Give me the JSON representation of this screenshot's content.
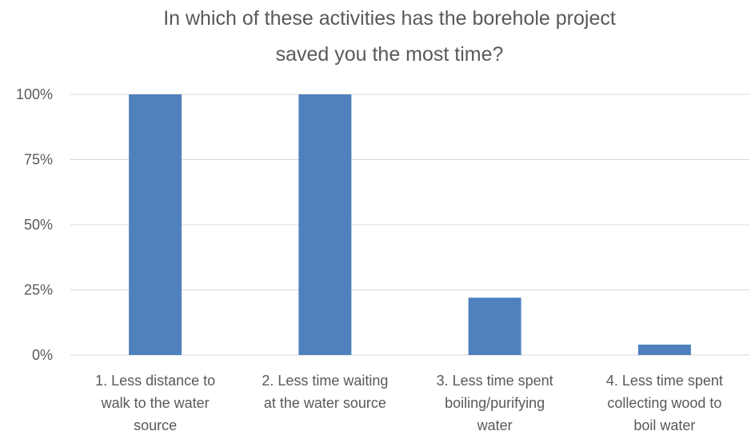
{
  "chart_data": {
    "type": "bar",
    "title_lines": [
      "In which of these activities has the borehole project",
      "saved you the most time?"
    ],
    "categories": [
      [
        "1. Less distance to",
        "walk to the water",
        "source"
      ],
      [
        "2. Less time waiting",
        "at the water source"
      ],
      [
        "3. Less time spent",
        "boiling/purifying",
        "water"
      ],
      [
        "4. Less time spent",
        "collecting wood to",
        "boil water"
      ]
    ],
    "values": [
      100,
      100,
      22,
      4
    ],
    "ylim": [
      0,
      100
    ],
    "yticks": [
      {
        "value": 0,
        "label": "0%"
      },
      {
        "value": 25,
        "label": "25%"
      },
      {
        "value": 50,
        "label": "50%"
      },
      {
        "value": 75,
        "label": "75%"
      },
      {
        "value": 100,
        "label": "100%"
      }
    ],
    "grid": true,
    "legend": "none",
    "colors": {
      "bar": "#4F81BD",
      "grid": "#D9D9D9",
      "text": "#595959"
    }
  }
}
